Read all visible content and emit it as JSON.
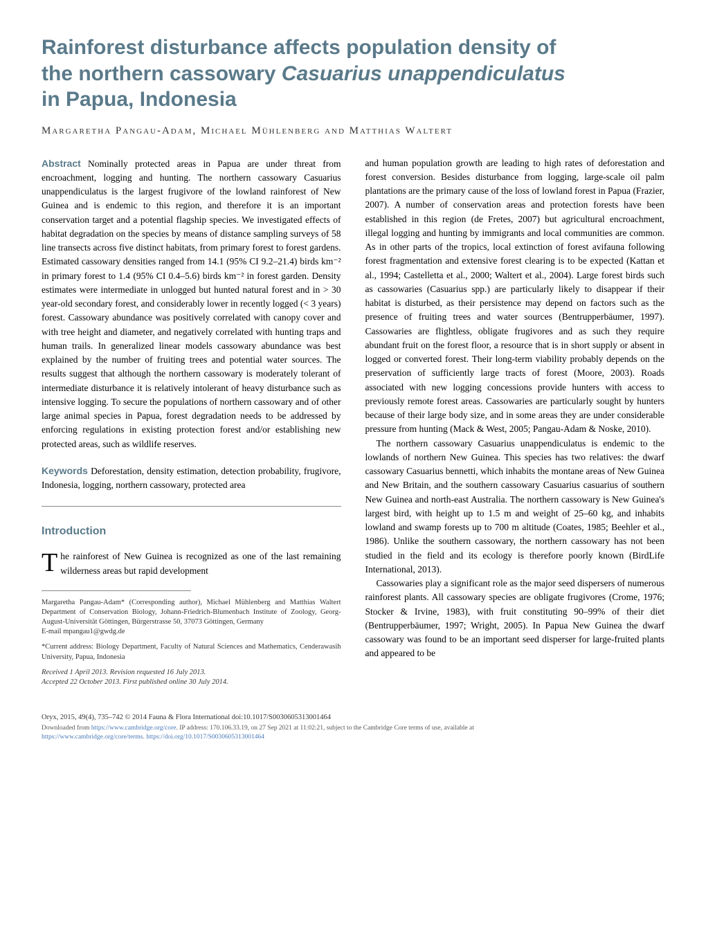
{
  "title": {
    "line1": "Rainforest disturbance affects population density of",
    "line2_plain": "the northern cassowary ",
    "line2_italic": "Casuarius unappendiculatus",
    "line3": "in Papua, Indonesia"
  },
  "authors": "Margaretha Pangau-Adam, Michael Mühlenberg and Matthias Waltert",
  "abstract_label": "Abstract",
  "abstract_text": " Nominally protected areas in Papua are under threat from encroachment, logging and hunting. The northern cassowary Casuarius unappendiculatus is the largest frugivore of the lowland rainforest of New Guinea and is endemic to this region, and therefore it is an important conservation target and a potential flagship species. We investigated effects of habitat degradation on the species by means of distance sampling surveys of 58 line transects across five distinct habitats, from primary forest to forest gardens. Estimated cassowary densities ranged from 14.1 (95% CI 9.2–21.4) birds km⁻² in primary forest to 1.4 (95% CI 0.4–5.6) birds km⁻² in forest garden. Density estimates were intermediate in unlogged but hunted natural forest and in > 30 year-old secondary forest, and considerably lower in recently logged (< 3 years) forest. Cassowary abundance was positively correlated with canopy cover and with tree height and diameter, and negatively correlated with hunting traps and human trails. In generalized linear models cassowary abundance was best explained by the number of fruiting trees and potential water sources. The results suggest that although the northern cassowary is moderately tolerant of intermediate disturbance it is relatively intolerant of heavy disturbance such as intensive logging. To secure the populations of northern cassowary and of other large animal species in Papua, forest degradation needs to be addressed by enforcing regulations in existing protection forest and/or establishing new protected areas, such as wildlife reserves.",
  "keywords_label": "Keywords",
  "keywords_text": " Deforestation, density estimation, detection probability, frugivore, Indonesia, logging, northern cassowary, protected area",
  "introduction_heading": "Introduction",
  "intro_dropcap": "T",
  "intro_text": "he rainforest of New Guinea is recognized as one of the last remaining wilderness areas but rapid development",
  "affiliation": {
    "p1": "Margaretha Pangau-Adam* (Corresponding author), Michael Mühlenberg and Matthias Waltert Department of Conservation Biology, Johann-Friedrich-Blumenbach Institute of Zoology, Georg-August-Universität Göttingen, Bürgerstrasse 50, 37073 Göttingen, Germany",
    "email": "E-mail mpangau1@gwdg.de",
    "p2": "*Current address: Biology Department, Faculty of Natural Sciences and Mathematics, Cenderawasih University, Papua, Indonesia",
    "p3": "Received 1 April 2013. Revision requested 16 July 2013.",
    "p4": "Accepted 22 October 2013. First published online 30 July 2014."
  },
  "col2": {
    "p1": "and human population growth are leading to high rates of deforestation and forest conversion. Besides disturbance from logging, large-scale oil palm plantations are the primary cause of the loss of lowland forest in Papua (Frazier, 2007). A number of conservation areas and protection forests have been established in this region (de Fretes, 2007) but agricultural encroachment, illegal logging and hunting by immigrants and local communities are common. As in other parts of the tropics, local extinction of forest avifauna following forest fragmentation and extensive forest clearing is to be expected (Kattan et al., 1994; Castelletta et al., 2000; Waltert et al., 2004). Large forest birds such as cassowaries (Casuarius spp.) are particularly likely to disappear if their habitat is disturbed, as their persistence may depend on factors such as the presence of fruiting trees and water sources (Bentrupperbäumer, 1997). Cassowaries are flightless, obligate frugivores and as such they require abundant fruit on the forest floor, a resource that is in short supply or absent in logged or converted forest. Their long-term viability probably depends on the preservation of sufficiently large tracts of forest (Moore, 2003). Roads associated with new logging concessions provide hunters with access to previously remote forest areas. Cassowaries are particularly sought by hunters because of their large body size, and in some areas they are under considerable pressure from hunting (Mack & West, 2005; Pangau-Adam & Noske, 2010).",
    "p2": "The northern cassowary Casuarius unappendiculatus is endemic to the lowlands of northern New Guinea. This species has two relatives: the dwarf cassowary Casuarius bennetti, which inhabits the montane areas of New Guinea and New Britain, and the southern cassowary Casuarius casuarius of southern New Guinea and north-east Australia. The northern cassowary is New Guinea's largest bird, with height up to 1.5 m and weight of 25–60 kg, and inhabits lowland and swamp forests up to 700 m altitude (Coates, 1985; Beehler et al., 1986). Unlike the southern cassowary, the northern cassowary has not been studied in the field and its ecology is therefore poorly known (BirdLife International, 2013).",
    "p3": "Cassowaries play a significant role as the major seed dispersers of numerous rainforest plants. All cassowary species are obligate frugivores (Crome, 1976; Stocker & Irvine, 1983), with fruit constituting 90–99% of their diet (Bentrupperbäumer, 1997; Wright, 2005). In Papua New Guinea the dwarf cassowary was found to be an important seed disperser for large-fruited plants and appeared to be"
  },
  "footer": {
    "citation": "Oryx, 2015, 49(4), 735–742 © 2014 Fauna & Flora International   doi:10.1017/S0030605313001464",
    "download1": "Downloaded from ",
    "link1": "https://www.cambridge.org/core",
    "download2": ". IP address: 170.106.33.19, on 27 Sep 2021 at 11:02:21, subject to the Cambridge Core terms of use, available at",
    "link2": "https://www.cambridge.org/core/terms",
    "sep": ". ",
    "link3": "https://doi.org/10.1017/S0030605313001464"
  },
  "colors": {
    "heading_color": "#5a7a8a",
    "link_color": "#4a7ab8",
    "text_color": "#000000",
    "background": "#ffffff"
  },
  "typography": {
    "title_fontsize": 30,
    "body_fontsize": 13.5,
    "affiliation_fontsize": 10.5,
    "footer_fontsize": 10.5,
    "heading_fontfamily": "Arial",
    "body_fontfamily": "Georgia"
  }
}
